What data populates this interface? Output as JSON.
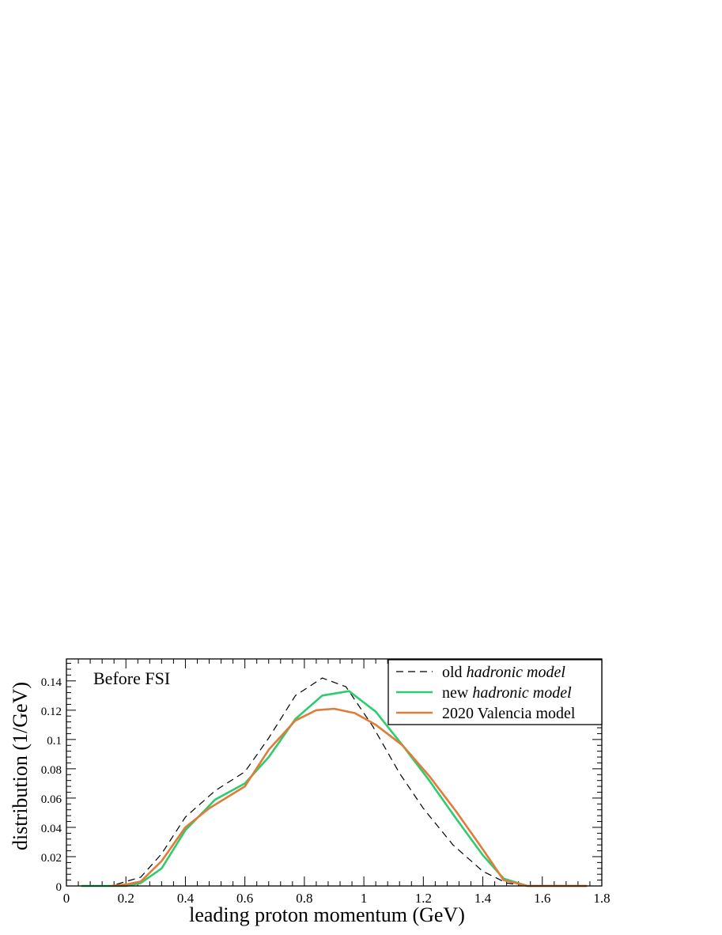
{
  "chart_data": {
    "type": "line",
    "annotation": "Before FSI",
    "xlabel": "leading proton momentum (GeV)",
    "ylabel": "distribution (1/GeV)",
    "xlim": [
      0,
      1.8
    ],
    "ylim": [
      0,
      0.155
    ],
    "x_ticks": [
      "0",
      "0.2",
      "0.4",
      "0.6",
      "0.8",
      "1",
      "1.2",
      "1.4",
      "1.6",
      "1.8"
    ],
    "y_ticks": [
      "0",
      "0.02",
      "0.04",
      "0.06",
      "0.08",
      "0.1",
      "0.12",
      "0.14"
    ],
    "legend": {
      "position": "top-right",
      "entries": [
        {
          "prefix": "old ",
          "italic": "hadronic model",
          "suffix": ""
        },
        {
          "prefix": "new ",
          "italic": "hadronic model",
          "suffix": ""
        },
        {
          "prefix": "2020 Valencia model",
          "italic": "",
          "suffix": ""
        }
      ]
    },
    "series": [
      {
        "key": "old",
        "color": "#000000",
        "dashed": true,
        "x": [
          0.05,
          0.15,
          0.2,
          0.25,
          0.32,
          0.4,
          0.5,
          0.6,
          0.68,
          0.77,
          0.86,
          0.94,
          1.03,
          1.12,
          1.2,
          1.3,
          1.4,
          1.48,
          1.55,
          1.65,
          1.75
        ],
        "y": [
          0.0,
          0.0,
          0.003,
          0.006,
          0.022,
          0.047,
          0.065,
          0.078,
          0.101,
          0.13,
          0.142,
          0.136,
          0.109,
          0.077,
          0.053,
          0.028,
          0.01,
          0.002,
          0.0,
          0.0,
          0.0
        ]
      },
      {
        "key": "new",
        "color": "#2ecc71",
        "dashed": false,
        "x": [
          0.05,
          0.15,
          0.2,
          0.25,
          0.32,
          0.4,
          0.5,
          0.6,
          0.68,
          0.77,
          0.86,
          0.95,
          1.04,
          1.13,
          1.22,
          1.31,
          1.4,
          1.47,
          1.55,
          1.65,
          1.75
        ],
        "y": [
          0.0,
          0.0,
          0.0,
          0.002,
          0.012,
          0.038,
          0.059,
          0.07,
          0.088,
          0.114,
          0.13,
          0.133,
          0.119,
          0.096,
          0.072,
          0.046,
          0.021,
          0.005,
          0.0,
          0.0,
          0.0
        ]
      },
      {
        "key": "valencia",
        "color": "#e07b39",
        "dashed": false,
        "x": [
          0.15,
          0.2,
          0.25,
          0.32,
          0.4,
          0.48,
          0.6,
          0.68,
          0.77,
          0.84,
          0.9,
          0.97,
          1.04,
          1.13,
          1.22,
          1.31,
          1.4,
          1.47,
          1.55,
          1.65,
          1.75
        ],
        "y": [
          0.0,
          0.001,
          0.003,
          0.017,
          0.04,
          0.053,
          0.068,
          0.093,
          0.113,
          0.12,
          0.121,
          0.118,
          0.11,
          0.096,
          0.075,
          0.051,
          0.025,
          0.004,
          0.0,
          0.0,
          0.0
        ]
      }
    ]
  }
}
